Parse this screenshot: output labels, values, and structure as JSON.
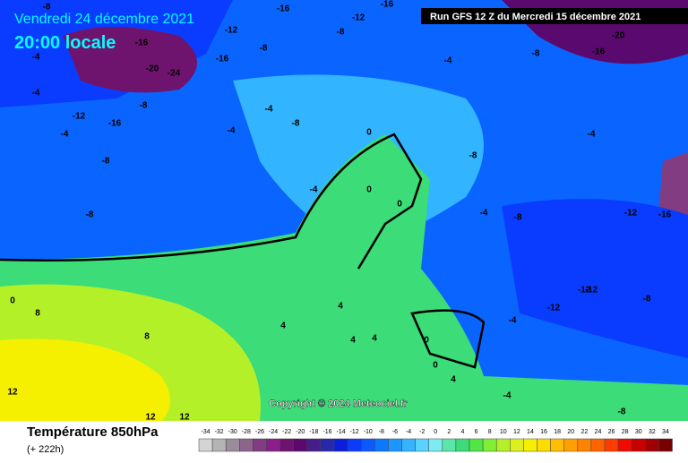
{
  "header": {
    "date": "Vendredi 24 décembre 2021",
    "time": "20:00 locale",
    "run": "Run GFS 12 Z du Mercredi 15 décembre 2021"
  },
  "copyright": "Copyright © 2024 Meteociel.fr",
  "footer": {
    "title": "Température 850hPa",
    "lead": "(+ 222h)"
  },
  "legend": {
    "values": [
      -34,
      -32,
      -30,
      -28,
      -26,
      -24,
      -22,
      -20,
      -18,
      -16,
      -14,
      -12,
      -10,
      -8,
      -6,
      -4,
      -2,
      0,
      2,
      4,
      6,
      8,
      10,
      12,
      14,
      16,
      18,
      20,
      22,
      24,
      26,
      28,
      30,
      32,
      34
    ],
    "colors": [
      "#d4d4d4",
      "#b4b4b4",
      "#9a8c9a",
      "#8c648c",
      "#823c82",
      "#8c1e8c",
      "#6e146e",
      "#5a0a6e",
      "#461e8c",
      "#2828aa",
      "#0a1edc",
      "#0a3cff",
      "#0a5aff",
      "#0a78ff",
      "#1e96ff",
      "#32b4ff",
      "#5ad2ff",
      "#7cecf0",
      "#5ae6aa",
      "#3cdc78",
      "#50e646",
      "#82ee32",
      "#b4f028",
      "#dcf01e",
      "#f5f000",
      "#ffdc00",
      "#ffbe00",
      "#ffa000",
      "#ff8200",
      "#ff6400",
      "#ff3c00",
      "#f00a00",
      "#c80000",
      "#a00000",
      "#780000"
    ]
  },
  "map_labels": [
    -8,
    -16,
    -12,
    -16,
    -12,
    -8,
    -16,
    -20,
    -24,
    -16,
    -8,
    -20,
    -16,
    -8,
    -4,
    -4,
    -12,
    -16,
    -8,
    -4,
    -4,
    -4,
    -8,
    0,
    -4,
    -8,
    -4,
    0,
    0,
    -8,
    -8,
    -4,
    -12,
    -16,
    -8,
    -12,
    -12,
    -8,
    -4,
    -12,
    0,
    8,
    4,
    4,
    4,
    4,
    0,
    0,
    8,
    12,
    12,
    12,
    4,
    -4,
    -8,
    -4
  ]
}
